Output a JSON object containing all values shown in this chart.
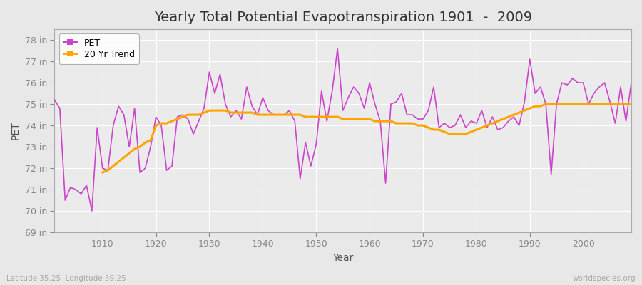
{
  "title": "Yearly Total Potential Evapotranspiration 1901  -  2009",
  "xlabel": "Year",
  "ylabel": "PET",
  "years": [
    1901,
    1902,
    1903,
    1904,
    1905,
    1906,
    1907,
    1908,
    1909,
    1910,
    1911,
    1912,
    1913,
    1914,
    1915,
    1916,
    1917,
    1918,
    1919,
    1920,
    1921,
    1922,
    1923,
    1924,
    1925,
    1926,
    1927,
    1928,
    1929,
    1930,
    1931,
    1932,
    1933,
    1934,
    1935,
    1936,
    1937,
    1938,
    1939,
    1940,
    1941,
    1942,
    1943,
    1944,
    1945,
    1946,
    1947,
    1948,
    1949,
    1950,
    1951,
    1952,
    1953,
    1954,
    1955,
    1956,
    1957,
    1958,
    1959,
    1960,
    1961,
    1962,
    1963,
    1964,
    1965,
    1966,
    1967,
    1968,
    1969,
    1970,
    1971,
    1972,
    1973,
    1974,
    1975,
    1976,
    1977,
    1978,
    1979,
    1980,
    1981,
    1982,
    1983,
    1984,
    1985,
    1986,
    1987,
    1988,
    1989,
    1990,
    1991,
    1992,
    1993,
    1994,
    1995,
    1996,
    1997,
    1998,
    1999,
    2000,
    2001,
    2002,
    2003,
    2004,
    2005,
    2006,
    2007,
    2008,
    2009
  ],
  "pet": [
    75.2,
    74.8,
    70.5,
    71.1,
    71.0,
    70.8,
    71.2,
    70.0,
    73.9,
    72.0,
    71.9,
    74.0,
    74.9,
    74.5,
    73.0,
    74.8,
    71.8,
    72.0,
    73.0,
    74.4,
    74.0,
    71.9,
    72.1,
    74.4,
    74.5,
    74.3,
    73.6,
    74.2,
    74.8,
    76.5,
    75.5,
    76.4,
    75.0,
    74.4,
    74.7,
    74.3,
    75.8,
    74.9,
    74.5,
    75.3,
    74.7,
    74.5,
    74.5,
    74.5,
    74.7,
    74.2,
    71.5,
    73.2,
    72.1,
    73.1,
    75.6,
    74.2,
    75.6,
    77.6,
    74.7,
    75.3,
    75.8,
    75.5,
    74.8,
    76.0,
    75.0,
    74.2,
    71.3,
    75.0,
    75.1,
    75.5,
    74.5,
    74.5,
    74.3,
    74.3,
    74.7,
    75.8,
    73.9,
    74.1,
    73.9,
    74.0,
    74.5,
    73.9,
    74.2,
    74.1,
    74.7,
    73.9,
    74.4,
    73.8,
    73.9,
    74.2,
    74.4,
    74.0,
    75.1,
    77.1,
    75.5,
    75.8,
    75.0,
    71.7,
    75.0,
    76.0,
    75.9,
    76.2,
    76.0,
    76.0,
    75.0,
    75.5,
    75.8,
    76.0,
    75.1,
    74.1,
    75.8,
    74.2,
    76.0
  ],
  "trend_years": [
    1910,
    1911,
    1912,
    1913,
    1914,
    1915,
    1916,
    1917,
    1918,
    1919,
    1920,
    1921,
    1922,
    1923,
    1924,
    1925,
    1926,
    1927,
    1928,
    1929,
    1930,
    1931,
    1932,
    1933,
    1934,
    1935,
    1936,
    1937,
    1938,
    1939,
    1940,
    1941,
    1942,
    1943,
    1944,
    1945,
    1946,
    1947,
    1948,
    1949,
    1950,
    1951,
    1952,
    1953,
    1954,
    1955,
    1956,
    1957,
    1958,
    1959,
    1960,
    1961,
    1962,
    1963,
    1964,
    1965,
    1966,
    1967,
    1968,
    1969,
    1970,
    1971,
    1972,
    1973,
    1974,
    1975,
    1976,
    1977,
    1978,
    1979,
    1980,
    1981,
    1982,
    1983,
    1984,
    1985,
    1986,
    1987,
    1988,
    1989,
    1990,
    1991,
    1992,
    1993,
    1994,
    1995,
    1996,
    1997,
    1998,
    1999,
    2000,
    2001,
    2002,
    2003,
    2004,
    2005,
    2006,
    2007,
    2008,
    2009
  ],
  "trend": [
    71.8,
    71.9,
    72.1,
    72.3,
    72.5,
    72.7,
    72.9,
    73.0,
    73.2,
    73.3,
    74.0,
    74.1,
    74.1,
    74.2,
    74.3,
    74.4,
    74.5,
    74.5,
    74.5,
    74.6,
    74.7,
    74.7,
    74.7,
    74.7,
    74.6,
    74.6,
    74.6,
    74.6,
    74.6,
    74.5,
    74.5,
    74.5,
    74.5,
    74.5,
    74.5,
    74.5,
    74.5,
    74.5,
    74.4,
    74.4,
    74.4,
    74.4,
    74.4,
    74.4,
    74.4,
    74.3,
    74.3,
    74.3,
    74.3,
    74.3,
    74.3,
    74.2,
    74.2,
    74.2,
    74.2,
    74.1,
    74.1,
    74.1,
    74.1,
    74.0,
    74.0,
    73.9,
    73.8,
    73.8,
    73.7,
    73.6,
    73.6,
    73.6,
    73.6,
    73.7,
    73.8,
    73.9,
    74.0,
    74.1,
    74.2,
    74.3,
    74.4,
    74.5,
    74.6,
    74.7,
    74.8,
    74.9,
    74.9,
    75.0,
    75.0,
    75.0,
    75.0,
    75.0,
    75.0,
    75.0,
    75.0,
    75.0,
    75.0,
    75.0,
    75.0,
    75.0,
    75.0,
    75.0,
    75.0,
    75.0
  ],
  "pet_color": "#cc44cc",
  "trend_color": "#ffa500",
  "bg_color": "#e8e8e8",
  "plot_bg_color": "#ebebeb",
  "ylim": [
    69,
    78.5
  ],
  "yticks": [
    69,
    70,
    71,
    72,
    73,
    74,
    75,
    76,
    77,
    78
  ],
  "ytick_labels": [
    "69 in",
    "70 in",
    "71 in",
    "72 in",
    "73 in",
    "74 in",
    "75 in",
    "76 in",
    "77 in",
    "78 in"
  ],
  "xticks": [
    1910,
    1920,
    1930,
    1940,
    1950,
    1960,
    1970,
    1980,
    1990,
    2000
  ],
  "bottom_left_text": "Latitude 35.25  Longitude 39.25",
  "bottom_right_text": "worldspecies.org",
  "title_fontsize": 14,
  "axis_label_fontsize": 10,
  "tick_fontsize": 9,
  "legend_fontsize": 9
}
